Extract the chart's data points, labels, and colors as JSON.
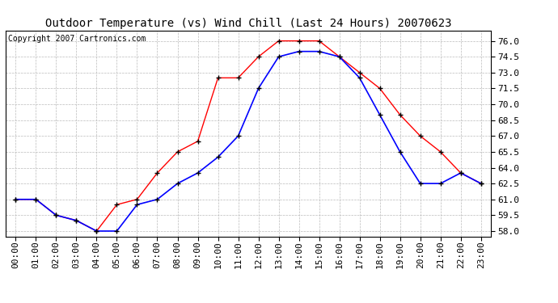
{
  "title": "Outdoor Temperature (vs) Wind Chill (Last 24 Hours) 20070623",
  "copyright": "Copyright 2007 Cartronics.com",
  "x_labels": [
    "00:00",
    "01:00",
    "02:00",
    "03:00",
    "04:00",
    "05:00",
    "06:00",
    "07:00",
    "08:00",
    "09:00",
    "10:00",
    "11:00",
    "12:00",
    "13:00",
    "14:00",
    "15:00",
    "16:00",
    "17:00",
    "18:00",
    "19:00",
    "20:00",
    "21:00",
    "22:00",
    "23:00"
  ],
  "temp_red": [
    61.0,
    61.0,
    59.5,
    59.0,
    58.0,
    60.5,
    61.0,
    63.5,
    65.5,
    66.5,
    72.5,
    72.5,
    74.5,
    76.0,
    76.0,
    76.0,
    74.5,
    73.0,
    71.5,
    69.0,
    67.0,
    65.5,
    63.5,
    62.5
  ],
  "wind_blue": [
    61.0,
    61.0,
    59.5,
    59.0,
    58.0,
    58.0,
    60.5,
    61.0,
    62.5,
    63.5,
    65.0,
    67.0,
    71.5,
    74.5,
    75.0,
    75.0,
    74.5,
    72.5,
    69.0,
    65.5,
    62.5,
    62.5,
    63.5,
    62.5
  ],
  "ylim": [
    57.5,
    77.0
  ],
  "yticks": [
    58.0,
    59.5,
    61.0,
    62.5,
    64.0,
    65.5,
    67.0,
    68.5,
    70.0,
    71.5,
    73.0,
    74.5,
    76.0
  ],
  "line_color_red": "#ff0000",
  "line_color_blue": "#0000ff",
  "bg_color": "#ffffff",
  "plot_bg_color": "#ffffff",
  "grid_color": "#bbbbbb",
  "title_fontsize": 10,
  "copyright_fontsize": 7,
  "tick_fontsize": 8
}
